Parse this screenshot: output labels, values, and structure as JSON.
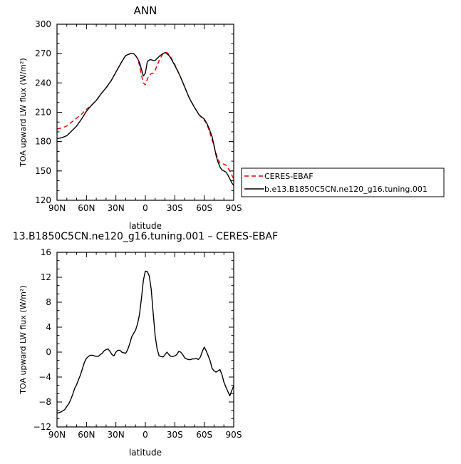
{
  "chart_data": [
    {
      "type": "line",
      "title": "ANN",
      "xlabel": "latitude",
      "ylabel": "TOA upward LW flux (W/m²)",
      "xlim": [
        90,
        -90
      ],
      "ylim": [
        120,
        300
      ],
      "x_ticks": [
        90,
        60,
        30,
        0,
        -30,
        -60,
        -90
      ],
      "x_tick_labels": [
        "90N",
        "60N",
        "30N",
        "0",
        "30S",
        "60S",
        "90S"
      ],
      "y_ticks": [
        120,
        150,
        180,
        210,
        240,
        270,
        300
      ],
      "legend_position": "right",
      "series": [
        {
          "name": "CERES-EBAF",
          "color": "#e00000",
          "dash": true,
          "x": [
            90,
            85,
            80,
            75,
            70,
            65,
            60,
            55,
            50,
            45,
            40,
            35,
            30,
            25,
            22,
            20,
            15,
            12,
            10,
            8,
            6,
            4,
            2,
            0,
            -2,
            -5,
            -8,
            -10,
            -12,
            -15,
            -18,
            -20,
            -22,
            -25,
            -30,
            -35,
            -40,
            -45,
            -50,
            -55,
            -60,
            -63,
            -65,
            -68,
            -70,
            -72,
            -74,
            -76,
            -78,
            -80,
            -82,
            -84,
            -86,
            -88,
            -90
          ],
          "y": [
            193,
            194,
            196,
            200,
            204,
            208,
            213,
            217,
            222,
            229,
            235,
            242,
            251,
            260,
            265,
            268,
            270,
            270,
            268,
            265,
            258,
            248,
            240,
            238,
            244,
            249,
            250,
            253,
            258,
            265,
            270,
            271,
            271,
            268,
            259,
            248,
            236,
            224,
            215,
            207,
            202,
            197,
            191,
            182,
            175,
            168,
            162,
            158,
            157,
            157,
            156,
            153,
            150,
            146,
            142
          ]
        },
        {
          "name": "b.e13.B1850C5CN.ne120_g16.tuning.001",
          "color": "#000000",
          "dash": false,
          "x": [
            90,
            85,
            80,
            75,
            70,
            65,
            60,
            55,
            50,
            45,
            40,
            35,
            30,
            25,
            22,
            20,
            15,
            12,
            10,
            8,
            6,
            4,
            2,
            0,
            -2,
            -5,
            -8,
            -10,
            -12,
            -15,
            -18,
            -20,
            -22,
            -25,
            -30,
            -35,
            -40,
            -45,
            -50,
            -55,
            -60,
            -63,
            -65,
            -68,
            -70,
            -72,
            -74,
            -76,
            -78,
            -80,
            -82,
            -84,
            -86,
            -88,
            -90
          ],
          "y": [
            183,
            184,
            186,
            191,
            196,
            203,
            211,
            217,
            222,
            229,
            235,
            242,
            251,
            260,
            265,
            268,
            270,
            270,
            268,
            265,
            261,
            254,
            247,
            250,
            262,
            264,
            263,
            263,
            265,
            268,
            270,
            271,
            270,
            267,
            258,
            248,
            236,
            224,
            215,
            207,
            203,
            198,
            193,
            185,
            176,
            166,
            159,
            154,
            151,
            150,
            149,
            146,
            142,
            138,
            135
          ]
        }
      ]
    },
    {
      "type": "line",
      "title": "13.B1850C5CN.ne120_g16.tuning.001 – CERES-EBAF",
      "xlabel": "latitude",
      "ylabel": "TOA upward LW flux (W/m²)",
      "xlim": [
        90,
        -90
      ],
      "ylim": [
        -12,
        16
      ],
      "x_ticks": [
        90,
        60,
        30,
        0,
        -30,
        -60,
        -90
      ],
      "x_tick_labels": [
        "90N",
        "60N",
        "30N",
        "0",
        "30S",
        "60S",
        "90S"
      ],
      "y_ticks": [
        -12,
        -8,
        -4,
        0,
        4,
        8,
        12,
        16
      ],
      "series": [
        {
          "color": "#000000",
          "dash": false,
          "x": [
            90,
            88,
            86,
            84,
            82,
            80,
            78,
            76,
            74,
            72,
            70,
            68,
            66,
            64,
            62,
            60,
            58,
            56,
            54,
            52,
            50,
            48,
            46,
            44,
            42,
            40,
            38,
            36,
            34,
            32,
            30,
            28,
            26,
            24,
            22,
            20,
            18,
            16,
            14,
            12,
            10,
            8,
            6,
            4,
            2,
            0,
            -2,
            -4,
            -6,
            -8,
            -10,
            -12,
            -14,
            -16,
            -18,
            -20,
            -22,
            -24,
            -26,
            -28,
            -30,
            -32,
            -34,
            -36,
            -38,
            -40,
            -42,
            -44,
            -46,
            -48,
            -50,
            -52,
            -54,
            -56,
            -58,
            -60,
            -62,
            -64,
            -66,
            -68,
            -70,
            -72,
            -74,
            -76,
            -78,
            -80,
            -82,
            -84,
            -86,
            -88,
            -90
          ],
          "y": [
            -9.8,
            -9.7,
            -9.6,
            -9.4,
            -9.2,
            -8.7,
            -8.3,
            -7.6,
            -6.8,
            -5.8,
            -5.2,
            -4.4,
            -3.6,
            -2.6,
            -1.6,
            -1.0,
            -0.7,
            -0.5,
            -0.5,
            -0.6,
            -0.7,
            -0.7,
            -0.4,
            -0.2,
            0.2,
            0.4,
            0.5,
            0.1,
            -0.4,
            -0.6,
            0.0,
            0.3,
            0.3,
            0.0,
            -0.1,
            -0.2,
            0.4,
            1.3,
            2.4,
            3.0,
            3.5,
            4.5,
            6.0,
            8.6,
            11.5,
            13.0,
            12.9,
            12.2,
            10.0,
            6.2,
            2.6,
            0.5,
            -0.6,
            -0.7,
            -0.8,
            -0.4,
            0.0,
            -0.4,
            -0.7,
            -0.7,
            -0.6,
            -0.4,
            0.1,
            0.0,
            -0.4,
            -0.9,
            -1.1,
            -1.2,
            -1.2,
            -1.1,
            -1.1,
            -1.0,
            -1.2,
            -0.8,
            0.1,
            0.8,
            0.2,
            -0.6,
            -1.4,
            -2.6,
            -3.0,
            -3.2,
            -3.0,
            -2.8,
            -3.6,
            -4.8,
            -5.6,
            -6.3,
            -7.0,
            -6.2,
            -5.4
          ]
        }
      ]
    }
  ]
}
